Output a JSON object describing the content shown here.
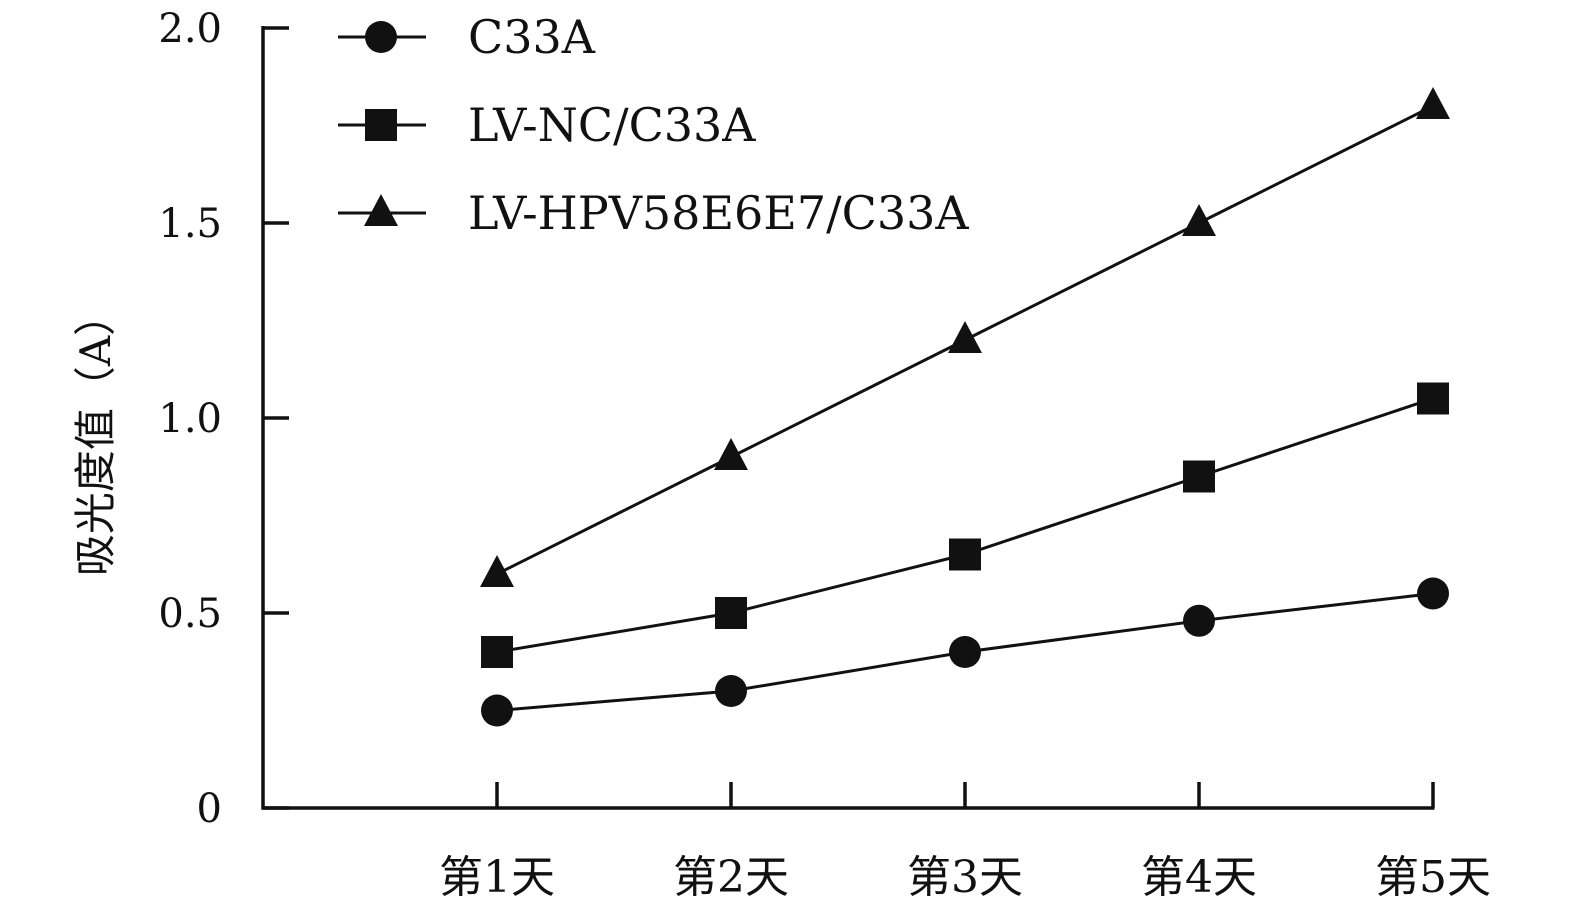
{
  "chart_data": {
    "type": "line",
    "title": "",
    "ylabel": "吸光度值（A）",
    "xlabel": "",
    "categories": [
      "第1天",
      "第2天",
      "第3天",
      "第4天",
      "第5天"
    ],
    "ylim": [
      0,
      2.0
    ],
    "yticks": [
      {
        "value": 0,
        "label": "0"
      },
      {
        "value": 0.5,
        "label": "0.5"
      },
      {
        "value": 1.0,
        "label": "1.0"
      },
      {
        "value": 1.5,
        "label": "1.5"
      },
      {
        "value": 2.0,
        "label": "2.0"
      }
    ],
    "grid": false,
    "legend_position": "top-left",
    "series": [
      {
        "name": "C33A",
        "marker": "circle",
        "values": [
          0.25,
          0.3,
          0.4,
          0.48,
          0.55
        ]
      },
      {
        "name": "LV-NC/C33A",
        "marker": "square",
        "values": [
          0.4,
          0.5,
          0.65,
          0.85,
          1.05
        ]
      },
      {
        "name": "LV-HPV58E6E7/C33A",
        "marker": "triangle",
        "values": [
          0.6,
          0.9,
          1.2,
          1.5,
          1.8
        ]
      }
    ],
    "line_color": "#111111"
  }
}
